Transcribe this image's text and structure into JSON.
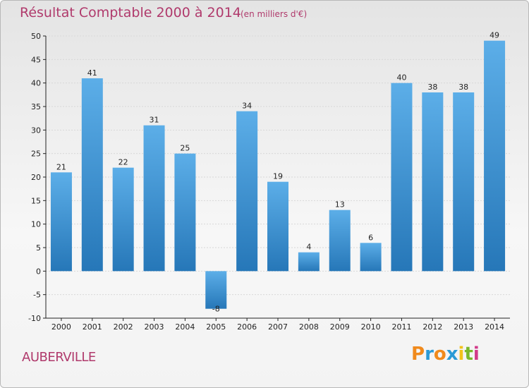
{
  "header": {
    "title": "Résultat Comptable 2000 à 2014",
    "subtitle": "(en milliers d'€)"
  },
  "footer": {
    "commune": "AUBERVILLE",
    "logo_text": "Proxiti",
    "logo_letters": [
      {
        "ch": "P",
        "color": "#f08a1c"
      },
      {
        "ch": "r",
        "color": "#2a9ad6"
      },
      {
        "ch": "o",
        "color": "#f08a1c"
      },
      {
        "ch": "x",
        "color": "#2a9ad6"
      },
      {
        "ch": "i",
        "color": "#f2c21a"
      },
      {
        "ch": "t",
        "color": "#79b82a"
      },
      {
        "ch": "i",
        "color": "#d23a8a"
      }
    ]
  },
  "colors": {
    "bar_light": "#5caee8",
    "bar_dark": "#2677b8",
    "title": "#b03a6c",
    "grid": "#d8d8d8",
    "axis": "#222222"
  },
  "chart_data": {
    "type": "bar",
    "title": "Résultat Comptable 2000 à 2014",
    "subtitle": "(en milliers d'€)",
    "categories": [
      "2000",
      "2001",
      "2002",
      "2003",
      "2004",
      "2005",
      "2006",
      "2007",
      "2008",
      "2009",
      "2010",
      "2011",
      "2012",
      "2013",
      "2014"
    ],
    "values": [
      21,
      41,
      22,
      31,
      25,
      -8,
      34,
      19,
      4,
      13,
      6,
      40,
      38,
      38,
      49
    ],
    "value_labels": [
      "21",
      "41",
      "22",
      "31",
      "25",
      "-8",
      "34",
      "19",
      "4",
      "13",
      "6",
      "40",
      "38",
      "38",
      "49"
    ],
    "ylim": [
      -10,
      50
    ],
    "yticks": [
      -10,
      -5,
      0,
      5,
      10,
      15,
      20,
      25,
      30,
      35,
      40,
      45,
      50
    ],
    "ytick_labels": [
      "-10",
      "-5",
      "0",
      "5",
      "10",
      "15",
      "20",
      "25",
      "30",
      "35",
      "40",
      "45",
      "50"
    ],
    "grid": true,
    "xlabel": "",
    "ylabel": ""
  }
}
